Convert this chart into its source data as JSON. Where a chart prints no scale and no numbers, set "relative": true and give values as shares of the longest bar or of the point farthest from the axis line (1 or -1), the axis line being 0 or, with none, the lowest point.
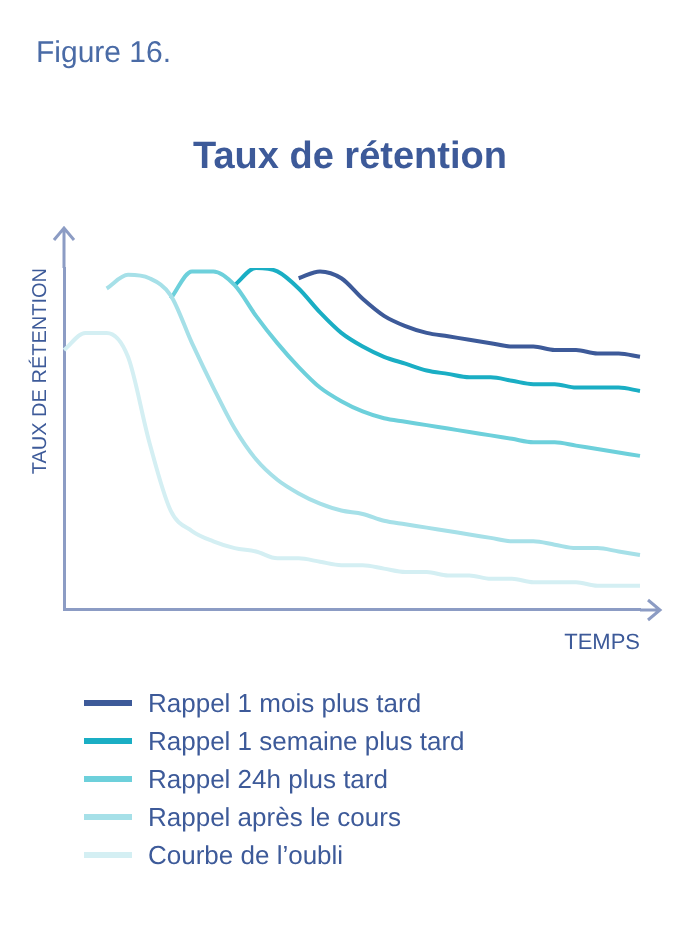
{
  "chart_data": {
    "type": "line",
    "title": "Taux de rétention",
    "xlabel": "TEMPS",
    "ylabel": "TAUX DE RÉTENTION",
    "annotations": [
      "Figure 16."
    ],
    "relative": true,
    "legend": "bottom",
    "marker": "none",
    "grid": false,
    "categories": [
      null,
      null,
      null,
      null,
      null,
      null,
      null,
      null,
      null,
      null,
      null,
      null,
      null,
      null,
      null,
      null,
      null,
      null,
      null,
      null,
      null,
      null,
      null,
      null,
      null,
      null,
      null,
      null
    ],
    "series": [
      {
        "name": "Rappel 1 mois plus tard",
        "color": "#3d5a99",
        "values": [
          null,
          null,
          null,
          null,
          null,
          null,
          null,
          null,
          null,
          null,
          null,
          0.97,
          0.99,
          0.97,
          0.91,
          0.86,
          0.83,
          0.81,
          0.8,
          0.79,
          0.78,
          0.77,
          0.77,
          0.76,
          0.76,
          0.75,
          0.75,
          0.74
        ]
      },
      {
        "name": "Rappel 1 semaine plus tard",
        "color": "#1aaec4",
        "values": [
          null,
          null,
          null,
          null,
          null,
          null,
          null,
          null,
          0.95,
          1,
          0.99,
          0.94,
          0.87,
          0.81,
          0.77,
          0.74,
          0.72,
          0.7,
          0.69,
          0.68,
          0.68,
          0.67,
          0.66,
          0.66,
          0.65,
          0.65,
          0.65,
          0.64
        ]
      },
      {
        "name": "Rappel 24h plus tard",
        "color": "#6dd0db",
        "values": [
          null,
          null,
          null,
          null,
          null,
          0.91,
          0.99,
          0.99,
          0.95,
          0.86,
          0.78,
          0.71,
          0.65,
          0.61,
          0.58,
          0.56,
          0.55,
          0.54,
          0.53,
          0.52,
          0.51,
          0.5,
          0.49,
          0.49,
          0.48,
          0.47,
          0.46,
          0.45
        ]
      },
      {
        "name": "Rappel après le cours",
        "color": "#a6e0e8",
        "values": [
          null,
          null,
          0.94,
          0.98,
          0.97,
          0.92,
          0.78,
          0.65,
          0.53,
          0.44,
          0.38,
          0.34,
          0.31,
          0.29,
          0.28,
          0.26,
          0.25,
          0.24,
          0.23,
          0.22,
          0.21,
          0.2,
          0.2,
          0.19,
          0.18,
          0.18,
          0.17,
          0.16
        ]
      },
      {
        "name": "Courbe de l’oubli",
        "color": "#d4eff3",
        "values": [
          0.76,
          0.81,
          0.81,
          0.74,
          0.49,
          0.29,
          0.23,
          0.2,
          0.18,
          0.17,
          0.15,
          0.15,
          0.14,
          0.13,
          0.13,
          0.12,
          0.11,
          0.11,
          0.1,
          0.1,
          0.09,
          0.09,
          0.08,
          0.08,
          0.08,
          0.07,
          0.07,
          0.07
        ]
      }
    ]
  }
}
